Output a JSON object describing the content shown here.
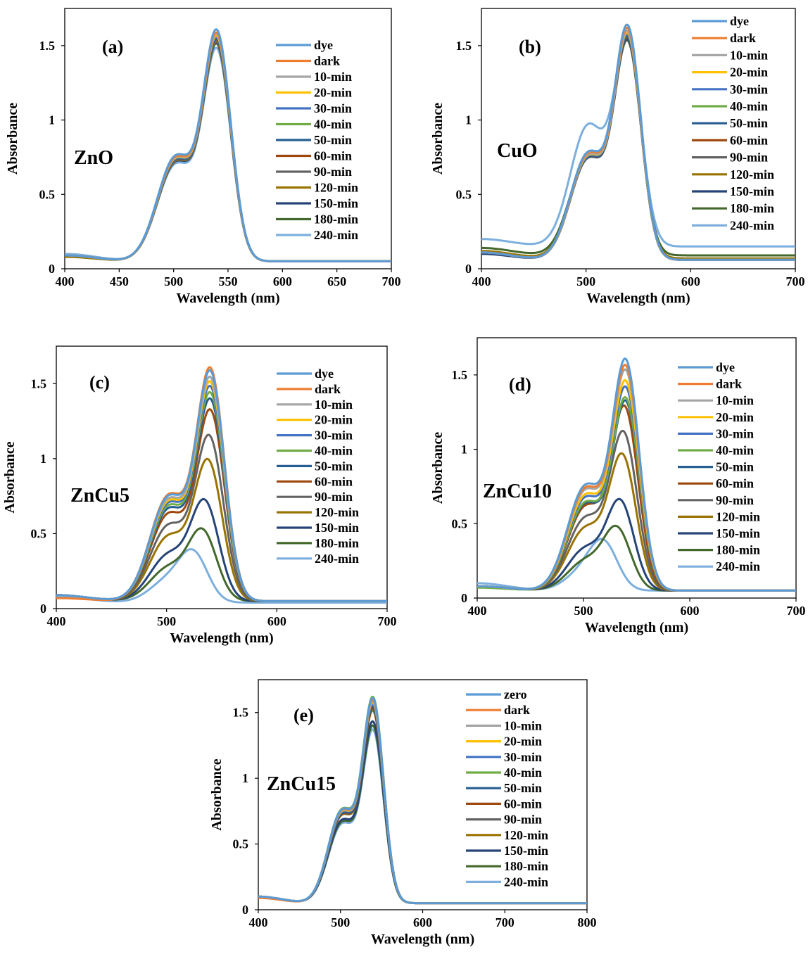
{
  "colors": {
    "series": [
      "#5B9BD5",
      "#ED7D31",
      "#A5A5A5",
      "#FFC000",
      "#4472C4",
      "#70AD47",
      "#255E91",
      "#9E480E",
      "#636363",
      "#997300",
      "#264478",
      "#43682B",
      "#7CAFDD"
    ]
  },
  "chart_data": [
    {
      "type": "line",
      "panel_label": "(a)",
      "material": "ZnO",
      "xlabel": "Wavelength (nm)",
      "ylabel": "Absorbance",
      "xlim": [
        400,
        700
      ],
      "ylim": [
        0,
        1.75
      ],
      "xticks": [
        400,
        450,
        500,
        550,
        600,
        650,
        700
      ],
      "yticks": [
        0,
        0.5,
        1,
        1.5
      ],
      "ytick_labels": [
        "0",
        "0.5",
        "1",
        "1.5"
      ],
      "legend_position": "top-right",
      "series": [
        {
          "name": "dye",
          "peak": 1.55,
          "peak_nm": 540,
          "baseline": 0.05,
          "shoulder": 0.45,
          "low": 0.09
        },
        {
          "name": "dark",
          "peak": 1.53,
          "peak_nm": 540,
          "baseline": 0.05,
          "shoulder": 0.45,
          "low": 0.09
        },
        {
          "name": "10-min",
          "peak": 1.52,
          "peak_nm": 540,
          "baseline": 0.05,
          "shoulder": 0.45,
          "low": 0.09
        },
        {
          "name": "20-min",
          "peak": 1.51,
          "peak_nm": 540,
          "baseline": 0.05,
          "shoulder": 0.45,
          "low": 0.09
        },
        {
          "name": "30-min",
          "peak": 1.5,
          "peak_nm": 540,
          "baseline": 0.05,
          "shoulder": 0.45,
          "low": 0.09
        },
        {
          "name": "40-min",
          "peak": 1.5,
          "peak_nm": 540,
          "baseline": 0.05,
          "shoulder": 0.45,
          "low": 0.09
        },
        {
          "name": "50-min",
          "peak": 1.49,
          "peak_nm": 540,
          "baseline": 0.05,
          "shoulder": 0.45,
          "low": 0.09
        },
        {
          "name": "60-min",
          "peak": 1.49,
          "peak_nm": 540,
          "baseline": 0.05,
          "shoulder": 0.45,
          "low": 0.09
        },
        {
          "name": "90-min",
          "peak": 1.48,
          "peak_nm": 540,
          "baseline": 0.05,
          "shoulder": 0.45,
          "low": 0.09
        },
        {
          "name": "120-min",
          "peak": 1.47,
          "peak_nm": 540,
          "baseline": 0.05,
          "shoulder": 0.45,
          "low": 0.08
        },
        {
          "name": "150-min",
          "peak": 1.46,
          "peak_nm": 540,
          "baseline": 0.05,
          "shoulder": 0.45,
          "low": 0.09
        },
        {
          "name": "180-min",
          "peak": 1.46,
          "peak_nm": 540,
          "baseline": 0.05,
          "shoulder": 0.45,
          "low": 0.09
        },
        {
          "name": "240-min",
          "peak": 1.43,
          "peak_nm": 540,
          "baseline": 0.05,
          "shoulder": 0.45,
          "low": 0.1
        }
      ]
    },
    {
      "type": "line",
      "panel_label": "(b)",
      "material": "CuO",
      "xlabel": "Wavelength (nm)",
      "ylabel": "Absorbance",
      "xlim": [
        400,
        700
      ],
      "ylim": [
        0,
        1.75
      ],
      "xticks": [
        400,
        500,
        600,
        700
      ],
      "yticks": [
        0,
        0.5,
        1,
        1.5
      ],
      "ytick_labels": [
        "0",
        "0.5",
        "1",
        "1.5"
      ],
      "legend_position": "top-right",
      "series": [
        {
          "name": "dye",
          "peak": 1.58,
          "peak_nm": 540,
          "baseline": 0.06,
          "shoulder": 0.45,
          "low": 0.11
        },
        {
          "name": "dark",
          "peak": 1.56,
          "peak_nm": 540,
          "baseline": 0.06,
          "shoulder": 0.45,
          "low": 0.11
        },
        {
          "name": "10-min",
          "peak": 1.54,
          "peak_nm": 540,
          "baseline": 0.06,
          "shoulder": 0.45,
          "low": 0.11
        },
        {
          "name": "20-min",
          "peak": 1.53,
          "peak_nm": 540,
          "baseline": 0.06,
          "shoulder": 0.45,
          "low": 0.11
        },
        {
          "name": "30-min",
          "peak": 1.52,
          "peak_nm": 540,
          "baseline": 0.06,
          "shoulder": 0.45,
          "low": 0.11
        },
        {
          "name": "40-min",
          "peak": 1.52,
          "peak_nm": 540,
          "baseline": 0.06,
          "shoulder": 0.45,
          "low": 0.11
        },
        {
          "name": "50-min",
          "peak": 1.51,
          "peak_nm": 540,
          "baseline": 0.06,
          "shoulder": 0.45,
          "low": 0.11
        },
        {
          "name": "60-min",
          "peak": 1.51,
          "peak_nm": 540,
          "baseline": 0.06,
          "shoulder": 0.45,
          "low": 0.11
        },
        {
          "name": "90-min",
          "peak": 1.5,
          "peak_nm": 540,
          "baseline": 0.06,
          "shoulder": 0.45,
          "low": 0.11
        },
        {
          "name": "120-min",
          "peak": 1.5,
          "peak_nm": 540,
          "baseline": 0.07,
          "shoulder": 0.45,
          "low": 0.12
        },
        {
          "name": "150-min",
          "peak": 1.49,
          "peak_nm": 540,
          "baseline": 0.06,
          "shoulder": 0.45,
          "low": 0.1
        },
        {
          "name": "180-min",
          "peak": 1.48,
          "peak_nm": 540,
          "baseline": 0.09,
          "shoulder": 0.45,
          "low": 0.14
        },
        {
          "name": "240-min",
          "peak": 1.47,
          "peak_nm": 540,
          "baseline": 0.15,
          "shoulder": 0.55,
          "low": 0.2
        }
      ]
    },
    {
      "type": "line",
      "panel_label": "(c)",
      "material": "ZnCu5",
      "xlabel": "Wavelength (nm)",
      "ylabel": "Absorbance",
      "xlim": [
        400,
        700
      ],
      "ylim": [
        0,
        1.75
      ],
      "xticks": [
        400,
        500,
        600,
        700
      ],
      "yticks": [
        0,
        0.5,
        1,
        1.5
      ],
      "ytick_labels": [
        "0",
        "0.5",
        "1",
        "1.5"
      ],
      "legend_position": "top-right",
      "series": [
        {
          "name": "dye",
          "peak": 1.53,
          "peak_nm": 540,
          "baseline": 0.05,
          "shoulder": 0.45,
          "low": 0.09
        },
        {
          "name": "dark",
          "peak": 1.55,
          "peak_nm": 540,
          "baseline": 0.05,
          "shoulder": 0.45,
          "low": 0.07
        },
        {
          "name": "10-min",
          "peak": 1.49,
          "peak_nm": 540,
          "baseline": 0.05,
          "shoulder": 0.45,
          "low": 0.09
        },
        {
          "name": "20-min",
          "peak": 1.46,
          "peak_nm": 540,
          "baseline": 0.05,
          "shoulder": 0.45,
          "low": 0.09
        },
        {
          "name": "30-min",
          "peak": 1.43,
          "peak_nm": 540,
          "baseline": 0.05,
          "shoulder": 0.45,
          "low": 0.09
        },
        {
          "name": "40-min",
          "peak": 1.39,
          "peak_nm": 540,
          "baseline": 0.05,
          "shoulder": 0.45,
          "low": 0.09
        },
        {
          "name": "50-min",
          "peak": 1.35,
          "peak_nm": 540,
          "baseline": 0.05,
          "shoulder": 0.45,
          "low": 0.09
        },
        {
          "name": "60-min",
          "peak": 1.28,
          "peak_nm": 540,
          "baseline": 0.05,
          "shoulder": 0.45,
          "low": 0.09
        },
        {
          "name": "90-min",
          "peak": 1.11,
          "peak_nm": 539,
          "baseline": 0.05,
          "shoulder": 0.45,
          "low": 0.09
        },
        {
          "name": "120-min",
          "peak": 0.95,
          "peak_nm": 538,
          "baseline": 0.05,
          "shoulder": 0.45,
          "low": 0.09
        },
        {
          "name": "150-min",
          "peak": 0.68,
          "peak_nm": 535,
          "baseline": 0.05,
          "shoulder": 0.45,
          "low": 0.09
        },
        {
          "name": "180-min",
          "peak": 0.49,
          "peak_nm": 533,
          "baseline": 0.05,
          "shoulder": 0.45,
          "low": 0.09
        },
        {
          "name": "240-min",
          "peak": 0.33,
          "peak_nm": 525,
          "baseline": 0.04,
          "shoulder": 0.45,
          "low": 0.08
        }
      ]
    },
    {
      "type": "line",
      "panel_label": "(d)",
      "material": "ZnCu10",
      "xlabel": "Wavelength (nm)",
      "ylabel": "Absorbance",
      "xlim": [
        400,
        700
      ],
      "ylim": [
        0,
        1.75
      ],
      "xticks": [
        400,
        500,
        600,
        700
      ],
      "yticks": [
        0,
        0.5,
        1,
        1.5
      ],
      "ytick_labels": [
        "0",
        "0.5",
        "1",
        "1.5"
      ],
      "legend_position": "top-right",
      "series": [
        {
          "name": "dye",
          "peak": 1.55,
          "peak_nm": 540,
          "baseline": 0.05,
          "shoulder": 0.45,
          "low": 0.08
        },
        {
          "name": "dark",
          "peak": 1.51,
          "peak_nm": 540,
          "baseline": 0.05,
          "shoulder": 0.45,
          "low": 0.08
        },
        {
          "name": "10-min",
          "peak": 1.48,
          "peak_nm": 540,
          "baseline": 0.05,
          "shoulder": 0.45,
          "low": 0.08
        },
        {
          "name": "20-min",
          "peak": 1.41,
          "peak_nm": 540,
          "baseline": 0.05,
          "shoulder": 0.45,
          "low": 0.08
        },
        {
          "name": "30-min",
          "peak": 1.37,
          "peak_nm": 540,
          "baseline": 0.05,
          "shoulder": 0.45,
          "low": 0.08
        },
        {
          "name": "40-min",
          "peak": 1.3,
          "peak_nm": 540,
          "baseline": 0.05,
          "shoulder": 0.45,
          "low": 0.07
        },
        {
          "name": "50-min",
          "peak": 1.28,
          "peak_nm": 540,
          "baseline": 0.05,
          "shoulder": 0.45,
          "low": 0.08
        },
        {
          "name": "60-min",
          "peak": 1.24,
          "peak_nm": 539,
          "baseline": 0.05,
          "shoulder": 0.45,
          "low": 0.08
        },
        {
          "name": "90-min",
          "peak": 1.07,
          "peak_nm": 538,
          "baseline": 0.05,
          "shoulder": 0.45,
          "low": 0.08
        },
        {
          "name": "120-min",
          "peak": 0.92,
          "peak_nm": 537,
          "baseline": 0.05,
          "shoulder": 0.45,
          "low": 0.08
        },
        {
          "name": "150-min",
          "peak": 0.62,
          "peak_nm": 535,
          "baseline": 0.05,
          "shoulder": 0.45,
          "low": 0.08
        },
        {
          "name": "180-min",
          "peak": 0.44,
          "peak_nm": 532,
          "baseline": 0.05,
          "shoulder": 0.45,
          "low": 0.08
        },
        {
          "name": "240-min",
          "peak": 0.31,
          "peak_nm": 520,
          "baseline": 0.05,
          "shoulder": 0.45,
          "low": 0.1
        }
      ]
    },
    {
      "type": "line",
      "panel_label": "(e)",
      "material": "ZnCu15",
      "xlabel": "Wavelength (nm)",
      "ylabel": "Absorbance",
      "xlim": [
        400,
        800
      ],
      "ylim": [
        0,
        1.75
      ],
      "xticks": [
        400,
        500,
        600,
        700,
        800
      ],
      "yticks": [
        0,
        0.5,
        1,
        1.5
      ],
      "ytick_labels": [
        "0",
        "0.5",
        "1",
        "1.5"
      ],
      "legend_position": "top-right",
      "series": [
        {
          "name": "zero",
          "peak": 1.55,
          "peak_nm": 540,
          "baseline": 0.05,
          "shoulder": 0.45,
          "low": 0.1
        },
        {
          "name": "dark",
          "peak": 1.54,
          "peak_nm": 540,
          "baseline": 0.05,
          "shoulder": 0.45,
          "low": 0.09
        },
        {
          "name": "10-min",
          "peak": 1.53,
          "peak_nm": 540,
          "baseline": 0.05,
          "shoulder": 0.45,
          "low": 0.1
        },
        {
          "name": "20-min",
          "peak": 1.52,
          "peak_nm": 540,
          "baseline": 0.05,
          "shoulder": 0.45,
          "low": 0.1
        },
        {
          "name": "30-min",
          "peak": 1.51,
          "peak_nm": 540,
          "baseline": 0.05,
          "shoulder": 0.45,
          "low": 0.1
        },
        {
          "name": "40-min",
          "peak": 1.56,
          "peak_nm": 540,
          "baseline": 0.05,
          "shoulder": 0.45,
          "low": 0.1
        },
        {
          "name": "50-min",
          "peak": 1.49,
          "peak_nm": 540,
          "baseline": 0.05,
          "shoulder": 0.45,
          "low": 0.1
        },
        {
          "name": "60-min",
          "peak": 1.48,
          "peak_nm": 540,
          "baseline": 0.05,
          "shoulder": 0.45,
          "low": 0.1
        },
        {
          "name": "90-min",
          "peak": 1.47,
          "peak_nm": 540,
          "baseline": 0.05,
          "shoulder": 0.45,
          "low": 0.1
        },
        {
          "name": "120-min",
          "peak": 1.46,
          "peak_nm": 540,
          "baseline": 0.05,
          "shoulder": 0.45,
          "low": 0.1
        },
        {
          "name": "150-min",
          "peak": 1.38,
          "peak_nm": 540,
          "baseline": 0.05,
          "shoulder": 0.45,
          "low": 0.1
        },
        {
          "name": "180-min",
          "peak": 1.35,
          "peak_nm": 540,
          "baseline": 0.05,
          "shoulder": 0.45,
          "low": 0.1
        },
        {
          "name": "240-min",
          "peak": 1.32,
          "peak_nm": 540,
          "baseline": 0.05,
          "shoulder": 0.45,
          "low": 0.1
        }
      ]
    }
  ]
}
